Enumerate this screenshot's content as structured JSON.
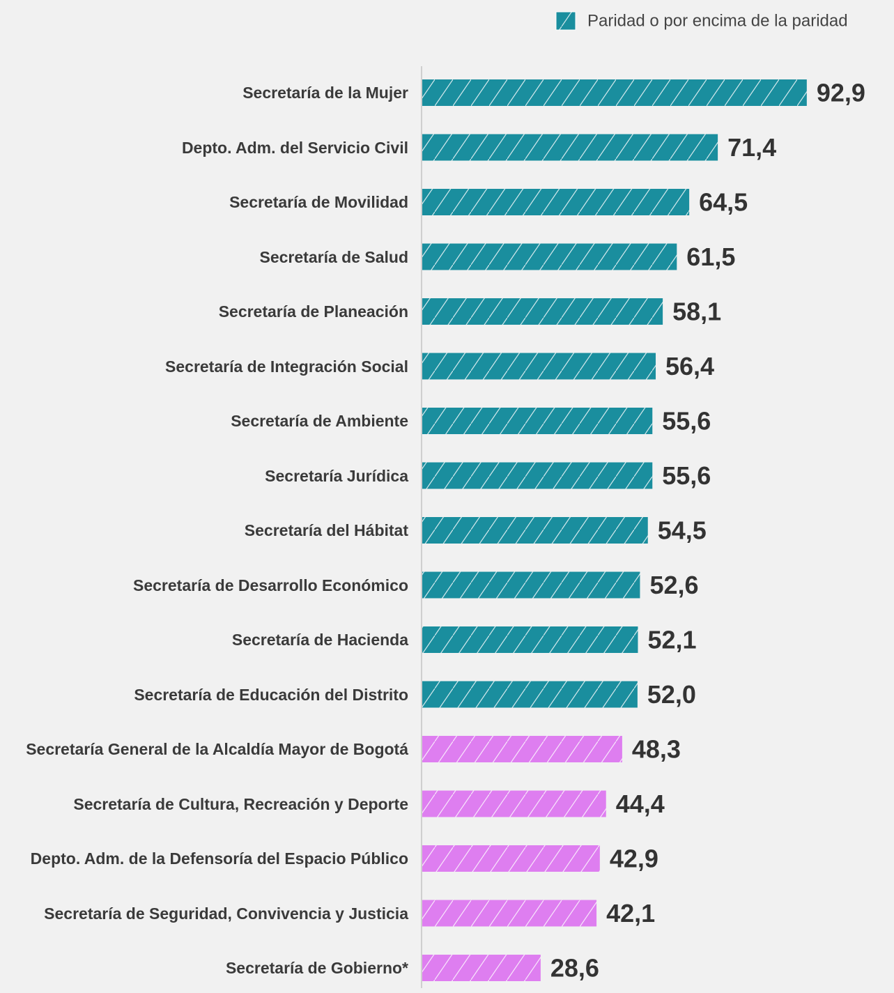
{
  "chart_data": {
    "type": "barh",
    "categories": [
      "Secretaría de la Mujer",
      "Depto. Adm. del Servicio Civil",
      "Secretaría de Movilidad",
      "Secretaría de Salud",
      "Secretaría de Planeación",
      "Secretaría de Integración Social",
      "Secretaría de Ambiente",
      "Secretaría Jurídica",
      "Secretaría del Hábitat",
      "Secretaría de Desarrollo Económico",
      "Secretaría de Hacienda",
      "Secretaría de Educación del Distrito",
      "Secretaría General de la Alcaldía Mayor de Bogotá",
      "Secretaría de Cultura, Recreación y Deporte",
      "Depto. Adm. de la Defensoría del Espacio Público",
      "Secretaría de Seguridad, Convivencia y Justicia",
      "Secretaría de Gobierno*"
    ],
    "values": [
      92.9,
      71.4,
      64.5,
      61.5,
      58.1,
      56.4,
      55.6,
      55.6,
      54.5,
      52.6,
      52.1,
      52.0,
      48.3,
      44.4,
      42.9,
      42.1,
      28.6
    ],
    "value_labels": [
      "92,9",
      "71,4",
      "64,5",
      "61,5",
      "58,1",
      "56,4",
      "55,6",
      "55,6",
      "54,5",
      "52,6",
      "52,1",
      "52,0",
      "48,3",
      "44,4",
      "42,9",
      "42,1",
      "28,6"
    ],
    "colors": [
      "#1a8e9e",
      "#1a8e9e",
      "#1a8e9e",
      "#1a8e9e",
      "#1a8e9e",
      "#1a8e9e",
      "#1a8e9e",
      "#1a8e9e",
      "#1a8e9e",
      "#1a8e9e",
      "#1a8e9e",
      "#1a8e9e",
      "#de7ef0",
      "#de7ef0",
      "#de7ef0",
      "#de7ef0",
      "#de7ef0"
    ],
    "xlim": [
      0,
      100
    ],
    "legend": {
      "label": "Paridad o por encima de la paridad",
      "color": "#1a8e9e"
    }
  }
}
